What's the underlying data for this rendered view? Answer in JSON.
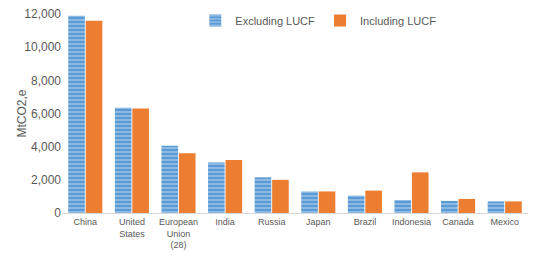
{
  "chart_data": {
    "type": "bar",
    "categories": [
      "China",
      "United States",
      "European Union (28)",
      "India",
      "Russia",
      "Japan",
      "Brazil",
      "Indonesia",
      "Canada",
      "Mexico"
    ],
    "series": [
      {
        "name": "Excluding LUCF",
        "color": "#5b9bd5",
        "values": [
          11900,
          6350,
          4050,
          3050,
          2150,
          1300,
          1050,
          780,
          730,
          700
        ]
      },
      {
        "name": "Including LUCF",
        "color": "#ed7d31",
        "values": [
          11600,
          6300,
          3600,
          3200,
          2000,
          1300,
          1350,
          2450,
          850,
          700
        ]
      }
    ],
    "y_label": "MtCO2,e",
    "ylim": [
      0,
      12000
    ],
    "yticks": [
      0,
      {
        "value": 2000,
        "label": "2,000"
      },
      {
        "value": 4000,
        "label": "4,000"
      },
      {
        "value": 6000,
        "label": "6,000"
      },
      {
        "value": 8000,
        "label": "8,000"
      },
      {
        "value": 10000,
        "label": "10,000"
      },
      {
        "value": 12000,
        "label": "12,000"
      }
    ],
    "grid": false,
    "legend": "top"
  }
}
